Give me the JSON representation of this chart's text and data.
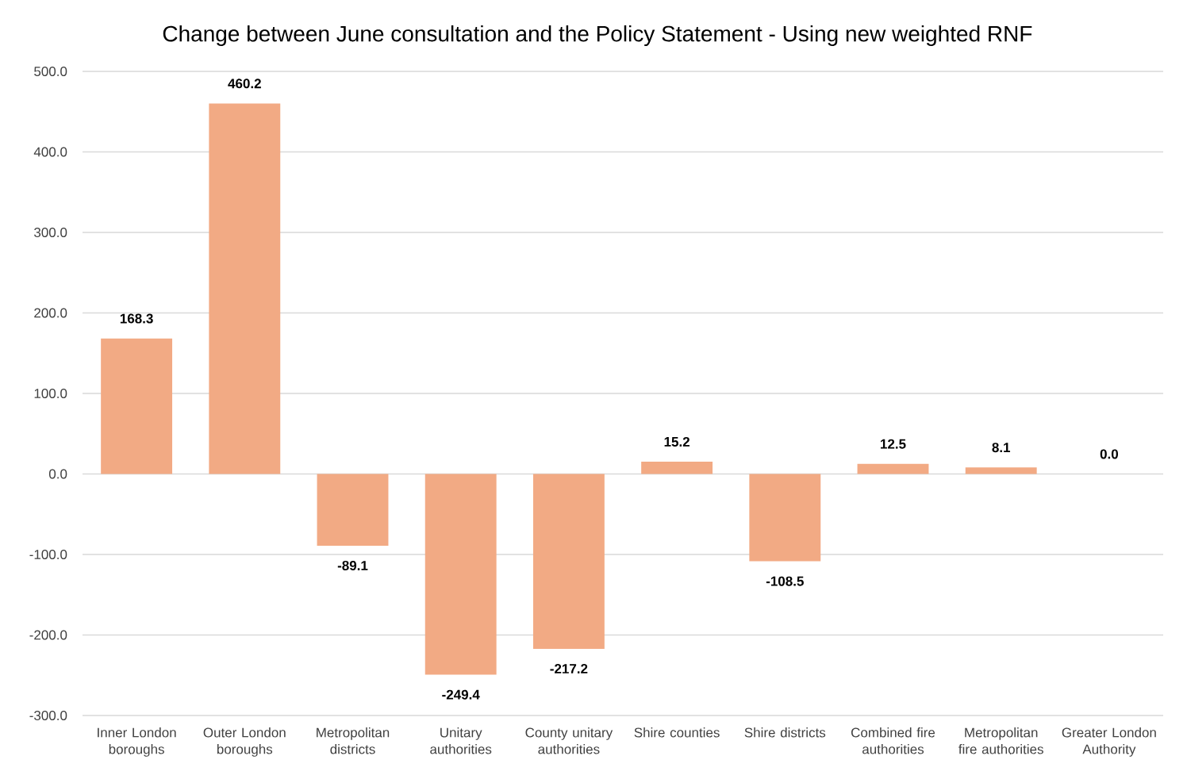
{
  "chart_data": {
    "type": "bar",
    "title": "Change between June consultation and the Policy Statement - Using new weighted RNF",
    "categories": [
      "Inner London boroughs",
      "Outer London boroughs",
      "Metropolitan districts",
      "Unitary authorities",
      "County unitary authorities",
      "Shire counties",
      "Shire districts",
      "Combined fire authorities",
      "Metropolitan fire authorities",
      "Greater London Authority"
    ],
    "values": [
      168.3,
      460.2,
      -89.1,
      -249.4,
      -217.2,
      15.2,
      -108.5,
      12.5,
      8.1,
      0.0
    ],
    "value_labels": [
      "168.3",
      "460.2",
      "-89.1",
      "-249.4",
      "-217.2",
      "15.2",
      "-108.5",
      "12.5",
      "8.1",
      "0.0"
    ],
    "color": "#f2aa84",
    "ylim": [
      -300,
      500
    ],
    "yticks": [
      {
        "value": -300,
        "label": "-300.0"
      },
      {
        "value": -200,
        "label": "-200.0"
      },
      {
        "value": -100,
        "label": "-100.0"
      },
      {
        "value": 0,
        "label": "0.0"
      },
      {
        "value": 100,
        "label": "100.0"
      },
      {
        "value": 200,
        "label": "200.0"
      },
      {
        "value": 300,
        "label": "300.0"
      },
      {
        "value": 400,
        "label": "400.0"
      },
      {
        "value": 500,
        "label": "500.0"
      }
    ],
    "grid": "y"
  }
}
